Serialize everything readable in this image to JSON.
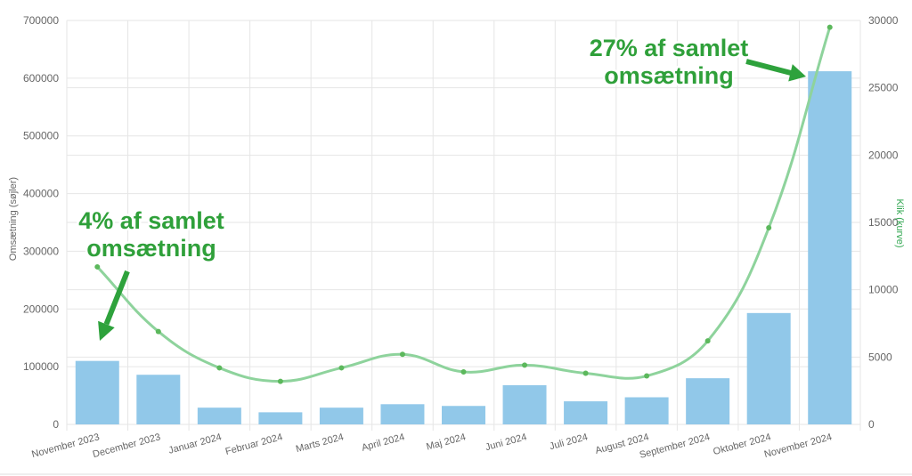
{
  "chart_data": {
    "type": "bar",
    "categories": [
      "November 2023",
      "December 2023",
      "Januar 2024",
      "Februar 2024",
      "Marts 2024",
      "April 2024",
      "Maj 2024",
      "Juni 2024",
      "Juli 2024",
      "August 2024",
      "September 2024",
      "Oktober 2024",
      "November 2024"
    ],
    "series": [
      {
        "type": "bar",
        "y_axis": "left",
        "values": [
          110000,
          86000,
          29000,
          21000,
          29000,
          35000,
          32000,
          68000,
          40000,
          47000,
          80000,
          193000,
          612000
        ]
      },
      {
        "type": "line",
        "y_axis": "right",
        "smooth": true,
        "values": [
          11700,
          6900,
          4200,
          3200,
          4200,
          5200,
          3900,
          4400,
          3800,
          3600,
          6200,
          14600,
          29500
        ]
      }
    ],
    "ylabel": "Omsætning (søjler)",
    "y2label": "Klik (kurve)",
    "ylim": [
      0,
      700000
    ],
    "y2lim": [
      0,
      30000
    ],
    "y_ticks": [
      "0",
      "100000",
      "200000",
      "300000",
      "400000",
      "500000",
      "600000",
      "700000"
    ],
    "y2_ticks": [
      "0",
      "5000",
      "10000",
      "15000",
      "20000",
      "25000",
      "30000"
    ],
    "grid": true,
    "annotations": [
      {
        "lines": [
          "27% af samlet",
          "omsætning"
        ]
      },
      {
        "lines": [
          "4% af samlet",
          "omsætning"
        ]
      }
    ],
    "colors": {
      "bar": "#91c8e9",
      "line": "#8ed39c",
      "point": "#5cb85c",
      "annotation": "#2fa03a",
      "arrow": "#2ea23c",
      "y2label": "#34a853",
      "ylabel": "#666666",
      "grid": "#e6e6e6"
    }
  }
}
